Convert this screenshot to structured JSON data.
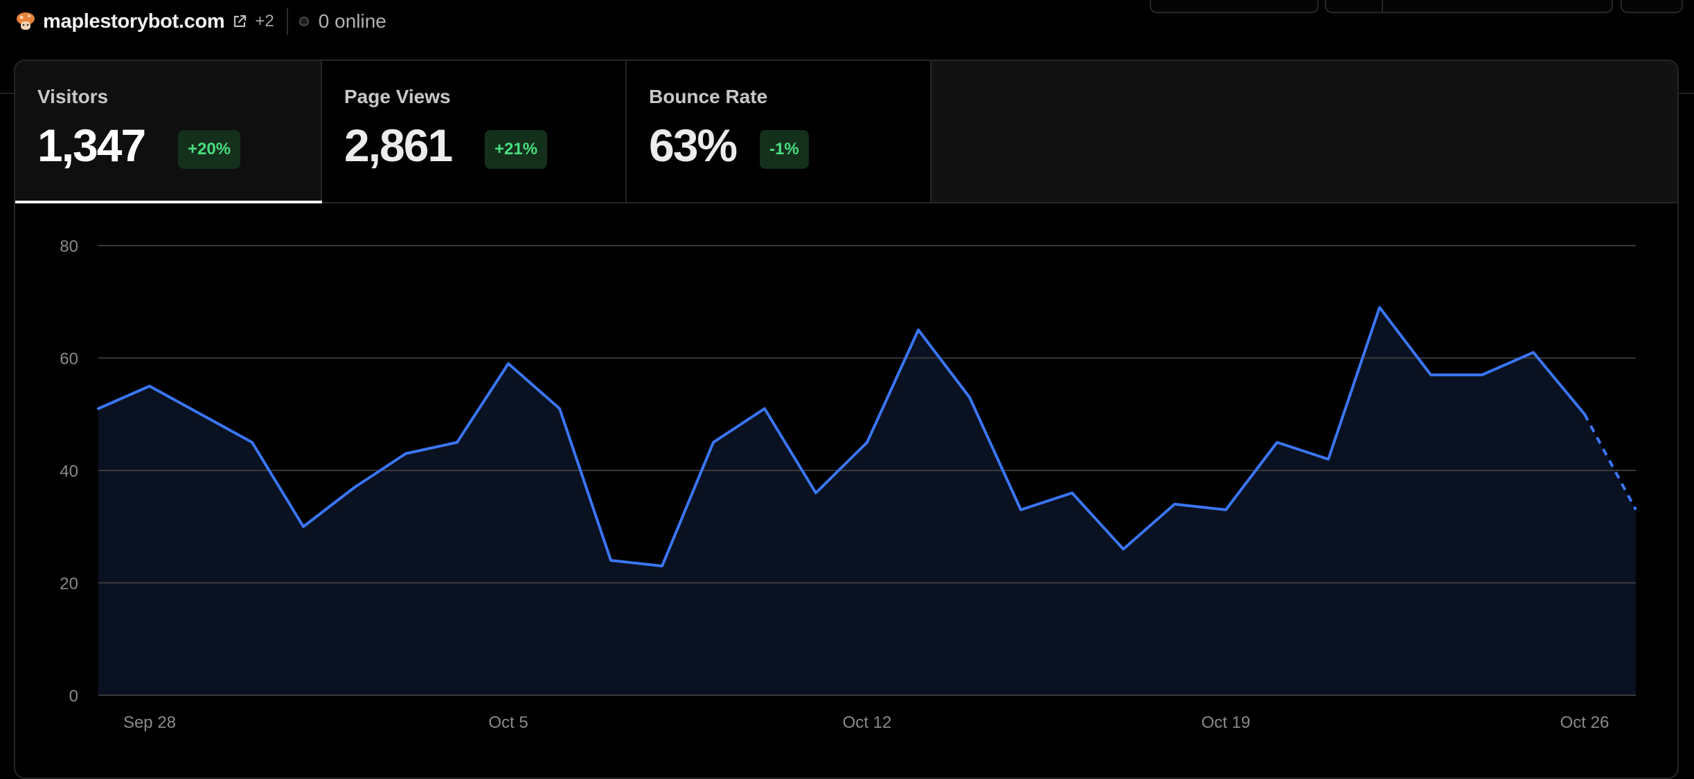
{
  "header": {
    "site_name": "maplestorybot.com",
    "extra_count": "+2",
    "online_text": "0 online",
    "icons": [
      "mushroom-favicon",
      "external-link-icon",
      "status-dot-icon"
    ]
  },
  "metrics": [
    {
      "label": "Visitors",
      "value": "1,347",
      "change": "+20%",
      "active": true
    },
    {
      "label": "Page Views",
      "value": "2,861",
      "change": "+21%",
      "active": false
    },
    {
      "label": "Bounce Rate",
      "value": "63%",
      "change": "-1%",
      "active": false
    }
  ],
  "colors": {
    "line": "#3b76f6",
    "area": "#0a1120",
    "grid": "#3a3a3a",
    "badge_bg": "#14301c",
    "badge_text": "#4ade80"
  },
  "chart_data": {
    "type": "area",
    "ylim": [
      0,
      80
    ],
    "y_ticks": [
      "0",
      "20",
      "40",
      "60",
      "80"
    ],
    "x_tick_labels": [
      "Sep 28",
      "Oct 5",
      "Oct 12",
      "Oct 19",
      "Oct 26"
    ],
    "x_tick_index": [
      1,
      8,
      15,
      22,
      29
    ],
    "dates": [
      "Sep 27",
      "Sep 28",
      "Sep 29",
      "Sep 30",
      "Oct 1",
      "Oct 2",
      "Oct 3",
      "Oct 4",
      "Oct 5",
      "Oct 6",
      "Oct 7",
      "Oct 8",
      "Oct 9",
      "Oct 10",
      "Oct 11",
      "Oct 12",
      "Oct 13",
      "Oct 14",
      "Oct 15",
      "Oct 16",
      "Oct 17",
      "Oct 18",
      "Oct 19",
      "Oct 20",
      "Oct 21",
      "Oct 22",
      "Oct 23",
      "Oct 24",
      "Oct 25",
      "Oct 26",
      "Oct 27"
    ],
    "series": [
      {
        "values": [
          51,
          55,
          50,
          45,
          30,
          37,
          43,
          45,
          59,
          51,
          24,
          23,
          45,
          51,
          36,
          45,
          65,
          53,
          33,
          36,
          26,
          34,
          33,
          45,
          42,
          69,
          57,
          57,
          61,
          50,
          33
        ],
        "dashed_from_index": 29
      }
    ],
    "grid": true
  }
}
